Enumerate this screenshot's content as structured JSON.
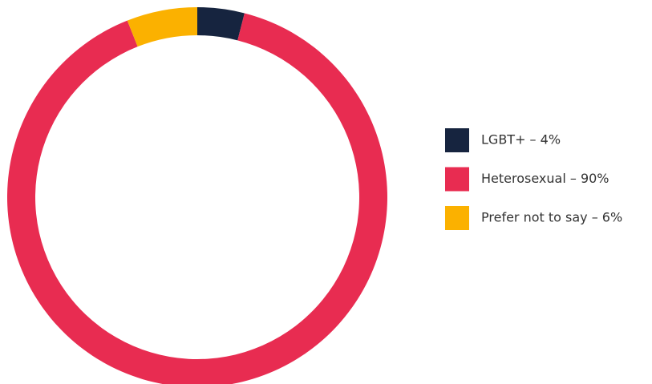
{
  "chart_data": {
    "type": "donut",
    "categories": [
      "LGBT+ – 4%",
      "Heterosexual – 90%",
      "Prefer not to say – 6%"
    ],
    "values": [
      4,
      90,
      6
    ],
    "colors": [
      "#16243f",
      "#e82c51",
      "#fbb100"
    ],
    "legend": "right"
  }
}
